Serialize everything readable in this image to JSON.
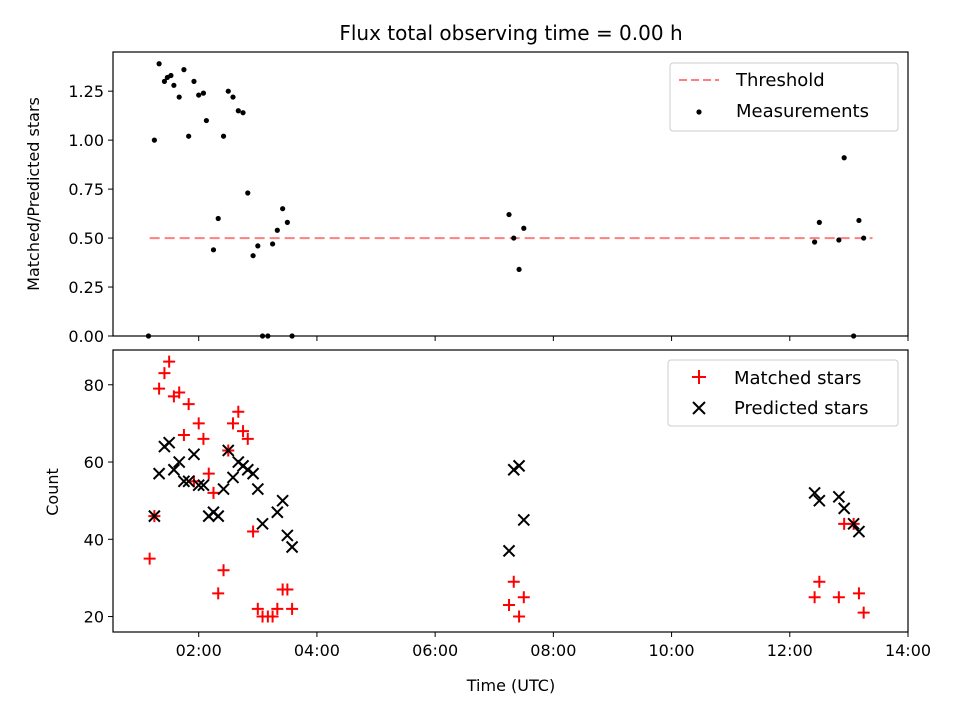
{
  "chart_data": [
    {
      "type": "scatter",
      "title": "Flux total observing time = 0.00 h",
      "ylabel": "Matched/Predicted stars",
      "xlim": [
        0.55,
        14.0
      ],
      "ylim": [
        0,
        1.45
      ],
      "yticks": [
        0,
        0.25,
        0.5,
        0.75,
        1.0,
        1.25
      ],
      "ytick_labels": [
        "0.00",
        "0.25",
        "0.50",
        "0.75",
        "1.00",
        "1.25"
      ],
      "threshold": {
        "name": "Threshold",
        "value": 0.5,
        "x": [
          1.17,
          13.4
        ],
        "color": "#ff7f7f"
      },
      "legend_position": "top-right",
      "series": [
        {
          "name": "Measurements",
          "color": "#000000",
          "x": [
            1.15,
            1.25,
            1.33,
            1.42,
            1.47,
            1.53,
            1.58,
            1.67,
            1.75,
            1.83,
            1.92,
            2.0,
            2.08,
            2.13,
            2.25,
            2.33,
            2.42,
            2.5,
            2.58,
            2.67,
            2.75,
            2.83,
            2.92,
            3.0,
            3.08,
            3.17,
            3.25,
            3.33,
            3.42,
            3.5,
            3.58,
            7.25,
            7.33,
            7.42,
            7.5,
            12.42,
            12.5,
            12.83,
            12.92,
            13.08,
            13.17,
            13.25
          ],
          "y": [
            0,
            1.0,
            1.39,
            1.3,
            1.32,
            1.33,
            1.28,
            1.22,
            1.36,
            1.02,
            1.3,
            1.23,
            1.24,
            1.1,
            0.44,
            0.6,
            1.02,
            1.25,
            1.22,
            1.15,
            1.14,
            0.73,
            0.41,
            0.46,
            0,
            0,
            0.47,
            0.54,
            0.65,
            0.58,
            0,
            0.62,
            0.5,
            0.34,
            0.55,
            0.48,
            0.58,
            0.49,
            0.91,
            0,
            0.59,
            0.5
          ]
        }
      ]
    },
    {
      "type": "scatter",
      "xlabel": "Time (UTC)",
      "ylabel": "Count",
      "xlim": [
        0.55,
        14.0
      ],
      "ylim": [
        16,
        89
      ],
      "xticks": [
        2,
        4,
        6,
        8,
        10,
        12,
        14
      ],
      "xtick_labels": [
        "02:00",
        "04:00",
        "06:00",
        "08:00",
        "10:00",
        "12:00",
        "14:00"
      ],
      "yticks": [
        20,
        40,
        60,
        80
      ],
      "ytick_labels": [
        "20",
        "40",
        "60",
        "80"
      ],
      "legend_position": "top-right",
      "series": [
        {
          "name": "Matched stars",
          "marker": "+",
          "color": "#ff0000",
          "x": [
            1.17,
            1.25,
            1.33,
            1.42,
            1.5,
            1.58,
            1.67,
            1.75,
            1.83,
            1.92,
            2.0,
            2.08,
            2.17,
            2.25,
            2.33,
            2.42,
            2.5,
            2.58,
            2.67,
            2.75,
            2.83,
            2.92,
            3.0,
            3.08,
            3.17,
            3.25,
            3.33,
            3.42,
            3.5,
            3.58,
            7.25,
            7.33,
            7.42,
            7.5,
            12.42,
            12.5,
            12.83,
            12.92,
            13.08,
            13.17,
            13.25
          ],
          "y": [
            35,
            46,
            79,
            83,
            86,
            77,
            78,
            67,
            75,
            55,
            70,
            66,
            57,
            52,
            26,
            32,
            63,
            70,
            73,
            68,
            66,
            42,
            22,
            20,
            20,
            20,
            22,
            27,
            27,
            22,
            23,
            29,
            20,
            25,
            25,
            29,
            25,
            44,
            44,
            26,
            21
          ]
        },
        {
          "name": "Predicted stars",
          "marker": "x",
          "color": "#000000",
          "x": [
            1.25,
            1.33,
            1.42,
            1.5,
            1.58,
            1.67,
            1.75,
            1.83,
            1.92,
            2.0,
            2.08,
            2.17,
            2.25,
            2.33,
            2.42,
            2.5,
            2.58,
            2.67,
            2.75,
            2.83,
            2.92,
            3.0,
            3.08,
            3.33,
            3.42,
            3.5,
            3.58,
            7.25,
            7.33,
            7.42,
            7.5,
            12.42,
            12.5,
            12.83,
            12.92,
            13.08,
            13.17
          ],
          "y": [
            46,
            57,
            64,
            65,
            58,
            60,
            55,
            55,
            62,
            54,
            54,
            46,
            47,
            46,
            53,
            63,
            56,
            60,
            59,
            58,
            57,
            53,
            44,
            47,
            50,
            41,
            38,
            37,
            58,
            59,
            45,
            52,
            50,
            51,
            48,
            44,
            42
          ]
        }
      ]
    }
  ]
}
